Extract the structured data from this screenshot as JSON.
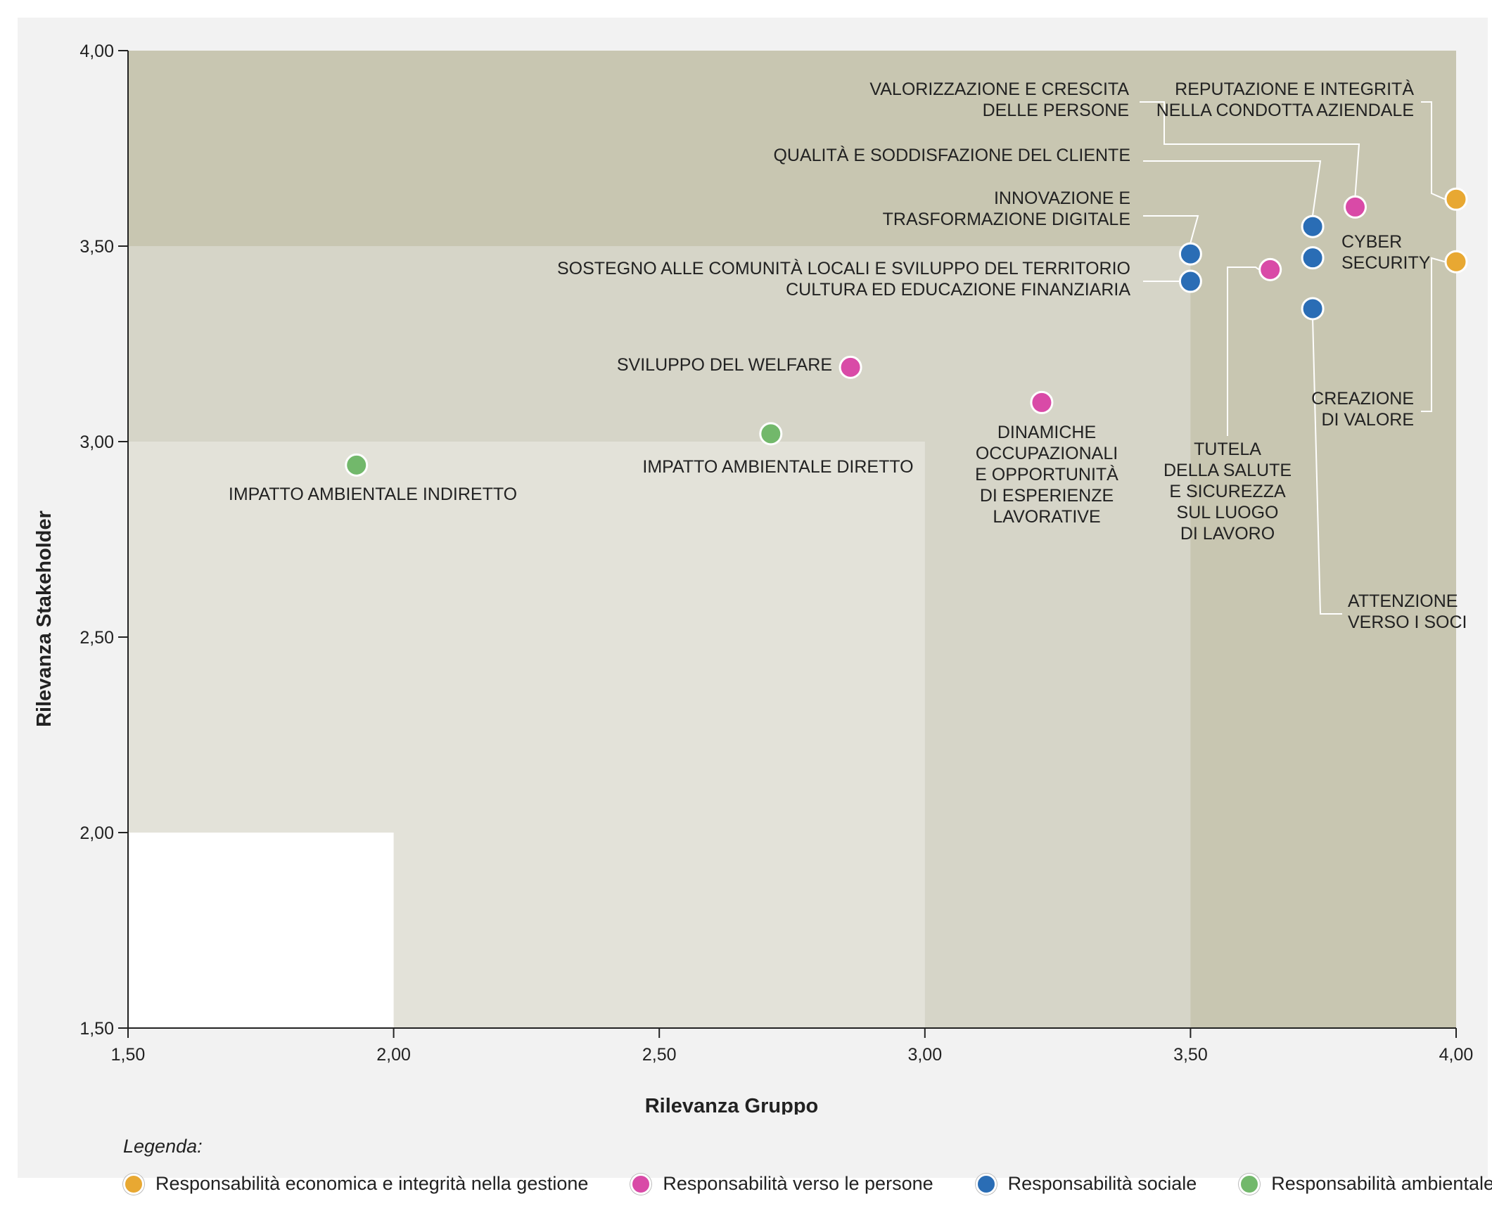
{
  "chart_data": {
    "type": "scatter",
    "xlabel": "Rilevanza Gruppo",
    "ylabel": "Rilevanza Stakeholder",
    "xlim": [
      1.5,
      4.0
    ],
    "ylim": [
      1.5,
      4.0
    ],
    "xticks": [
      "1,50",
      "2,00",
      "2,50",
      "3,00",
      "3,50",
      "4,00"
    ],
    "yticks": [
      "1,50",
      "2,00",
      "2,50",
      "3,00",
      "3,50",
      "4,00"
    ],
    "regions": [
      {
        "x": [
          1.5,
          4.0
        ],
        "y": [
          1.5,
          4.0
        ],
        "color": "#c8c6b1"
      },
      {
        "x": [
          1.5,
          3.5
        ],
        "y": [
          1.5,
          3.5
        ],
        "color": "#d6d5c8"
      },
      {
        "x": [
          1.5,
          3.0
        ],
        "y": [
          1.5,
          3.0
        ],
        "color": "#e3e2d9"
      },
      {
        "x": [
          1.5,
          2.0
        ],
        "y": [
          1.5,
          2.0
        ],
        "color": "#ffffff"
      }
    ],
    "categories": [
      {
        "key": "economica",
        "name": "Responsabilità economica e integrità nella gestione",
        "color": "#e8a832"
      },
      {
        "key": "persone",
        "name": "Responsabilità verso le persone",
        "color": "#d94aa7"
      },
      {
        "key": "sociale",
        "name": "Responsabilità sociale",
        "color": "#2a6db5"
      },
      {
        "key": "ambientale",
        "name": "Responsabilità  ambientale",
        "color": "#72b86b"
      }
    ],
    "points": [
      {
        "x": 4.0,
        "y": 3.62,
        "cat": "economica",
        "label": [
          "REPUTAZIONE E INTEGRITÀ",
          "NELLA CONDOTTA AZIENDALE"
        ]
      },
      {
        "x": 4.0,
        "y": 3.46,
        "cat": "economica",
        "label": [
          "CREAZIONE",
          "DI VALORE"
        ]
      },
      {
        "x": 3.81,
        "y": 3.6,
        "cat": "persone",
        "label": [
          "VALORIZZAZIONE E CRESCITA",
          "DELLE PERSONE"
        ]
      },
      {
        "x": 3.65,
        "y": 3.44,
        "cat": "persone",
        "label": [
          "TUTELA",
          "DELLA SALUTE",
          "E SICUREZZA",
          "SUL LUOGO",
          "DI LAVORO"
        ]
      },
      {
        "x": 3.22,
        "y": 3.1,
        "cat": "persone",
        "label": [
          "DINAMICHE",
          "OCCUPAZIONALI",
          "E OPPORTUNITÀ",
          "DI ESPERIENZE",
          "LAVORATIVE"
        ]
      },
      {
        "x": 2.86,
        "y": 3.19,
        "cat": "persone",
        "label": [
          "SVILUPPO DEL WELFARE"
        ]
      },
      {
        "x": 3.73,
        "y": 3.55,
        "cat": "sociale",
        "label": [
          "QUALITÀ E SODDISFAZIONE DEL CLIENTE"
        ]
      },
      {
        "x": 3.73,
        "y": 3.47,
        "cat": "sociale",
        "label": [
          "CYBER",
          "SECURITY"
        ]
      },
      {
        "x": 3.73,
        "y": 3.34,
        "cat": "sociale",
        "label": [
          "ATTENZIONE",
          "VERSO I SOCI"
        ]
      },
      {
        "x": 3.5,
        "y": 3.48,
        "cat": "sociale",
        "label": [
          "INNOVAZIONE E",
          "TRASFORMAZIONE DIGITALE"
        ]
      },
      {
        "x": 3.5,
        "y": 3.41,
        "cat": "sociale",
        "label": [
          "SOSTEGNO ALLE COMUNITÀ LOCALI E SVILUPPO DEL TERRITORIO",
          "CULTURA ED EDUCAZIONE FINANZIARIA"
        ]
      },
      {
        "x": 2.71,
        "y": 3.02,
        "cat": "ambientale",
        "label": [
          "IMPATTO AMBIENTALE DIRETTO"
        ]
      },
      {
        "x": 1.93,
        "y": 2.94,
        "cat": "ambientale",
        "label": [
          "IMPATTO AMBIENTALE INDIRETTO"
        ]
      }
    ]
  },
  "legend": {
    "title": "Legenda:",
    "items": [
      {
        "label": "Responsabilità economica e integrità nella gestione",
        "color": "#e8a832"
      },
      {
        "label": "Responsabilità verso le persone",
        "color": "#d94aa7"
      },
      {
        "label": "Responsabilità sociale",
        "color": "#2a6db5"
      },
      {
        "label": "Responsabilità  ambientale",
        "color": "#72b86b"
      }
    ]
  }
}
